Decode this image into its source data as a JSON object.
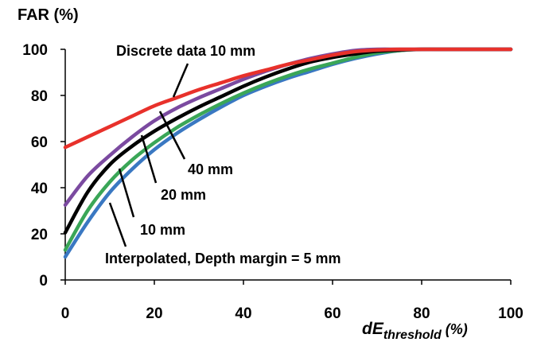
{
  "chart_data": {
    "type": "line",
    "ylabel": "FAR (%)",
    "xlabel": "dE",
    "xlabel_sub": "threshold",
    "xlabel_suffix": " (%)",
    "xlim": [
      0,
      100
    ],
    "ylim": [
      0,
      100
    ],
    "x_ticks": [
      0,
      20,
      40,
      60,
      80,
      100
    ],
    "y_ticks": [
      0,
      20,
      40,
      60,
      80,
      100
    ],
    "grid": false,
    "legend": "none (direct labels with leader lines)",
    "series": [
      {
        "name": "Discrete data 10 mm",
        "color": "#e8312b",
        "x": [
          0,
          5,
          10,
          15,
          20,
          25,
          30,
          35,
          40,
          45,
          50,
          55,
          60,
          65,
          70,
          75,
          80,
          85,
          90,
          95,
          100
        ],
        "y": [
          57.5,
          62,
          66.5,
          71,
          75.5,
          79,
          82.5,
          85.5,
          88.5,
          91,
          93.5,
          95.5,
          97.5,
          99,
          99.7,
          100,
          100,
          100,
          100,
          100,
          100
        ]
      },
      {
        "name": "40 mm",
        "color": "#7b4aa0",
        "x": [
          0,
          5,
          10,
          15,
          20,
          25,
          30,
          35,
          40,
          45,
          50,
          55,
          60,
          65,
          70,
          75,
          80,
          85,
          90,
          95,
          100
        ],
        "y": [
          32.5,
          45,
          54,
          62,
          69,
          74.5,
          79,
          83,
          87,
          90.5,
          93.5,
          96,
          98,
          99.5,
          100,
          100,
          100,
          100,
          100,
          100,
          100
        ]
      },
      {
        "name": "20 mm",
        "color": "#000000",
        "x": [
          0,
          5,
          10,
          15,
          20,
          25,
          30,
          35,
          40,
          45,
          50,
          55,
          60,
          65,
          70,
          75,
          80,
          85,
          90,
          95,
          100
        ],
        "y": [
          20.5,
          38,
          50,
          58,
          64.5,
          70,
          75,
          79.5,
          84,
          88,
          91.5,
          94.5,
          96.5,
          98,
          99.2,
          99.7,
          100,
          100,
          100,
          100,
          100
        ]
      },
      {
        "name": "10 mm",
        "color": "#3aa657",
        "x": [
          0,
          5,
          10,
          15,
          20,
          25,
          30,
          35,
          40,
          45,
          50,
          55,
          60,
          65,
          70,
          75,
          80,
          85,
          90,
          95,
          100
        ],
        "y": [
          13,
          30,
          42.5,
          52,
          59.5,
          66,
          71.5,
          76.5,
          81,
          85,
          88.5,
          91.5,
          94,
          96.5,
          98.5,
          99.5,
          100,
          100,
          100,
          100,
          100
        ]
      },
      {
        "name": "Interpolated, Depth margin = 5 mm",
        "color": "#3a78c2",
        "x": [
          0,
          5,
          10,
          15,
          20,
          25,
          30,
          35,
          40,
          45,
          50,
          55,
          60,
          65,
          70,
          75,
          80,
          85,
          90,
          95,
          100
        ],
        "y": [
          10,
          25,
          38,
          48,
          56.5,
          63.5,
          69.5,
          75,
          80,
          84,
          87.5,
          90.5,
          93.5,
          96,
          98,
          99.5,
          100,
          100,
          100,
          100,
          100
        ]
      }
    ],
    "annotations": [
      {
        "text": "Discrete data 10 mm",
        "points_to_x": 25
      },
      {
        "text": "40 mm",
        "points_to_x": 20
      },
      {
        "text": "20 mm",
        "points_to_x": 17
      },
      {
        "text": "10 mm",
        "points_to_x": 12.5
      },
      {
        "text": "Interpolated, Depth margin = 5 mm",
        "points_to_x": 10
      }
    ]
  }
}
